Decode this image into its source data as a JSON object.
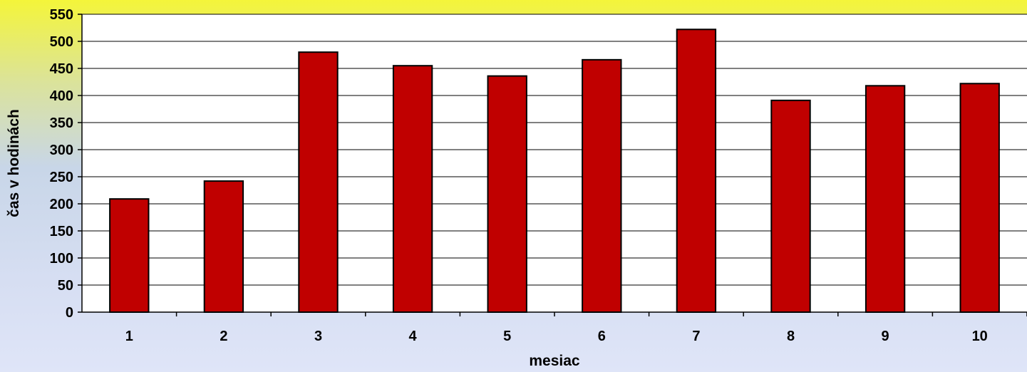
{
  "chart_data": {
    "type": "bar",
    "categories": [
      "1",
      "2",
      "3",
      "4",
      "5",
      "6",
      "7",
      "8",
      "9",
      "10"
    ],
    "values": [
      209,
      242,
      480,
      455,
      436,
      466,
      522,
      391,
      418,
      422
    ],
    "title": "",
    "xlabel": "mesiac",
    "ylabel": "čas v hodinách",
    "ylim": [
      0,
      550
    ],
    "yticks": [
      "0",
      "50",
      "100",
      "150",
      "200",
      "250",
      "300",
      "350",
      "400",
      "450",
      "500",
      "550"
    ],
    "grid": true,
    "legend": "none",
    "colors": {
      "bar_fill": "#c00000",
      "bar_stroke": "#000000",
      "plot_background": "#ffffff",
      "gridline": "#000000"
    }
  }
}
